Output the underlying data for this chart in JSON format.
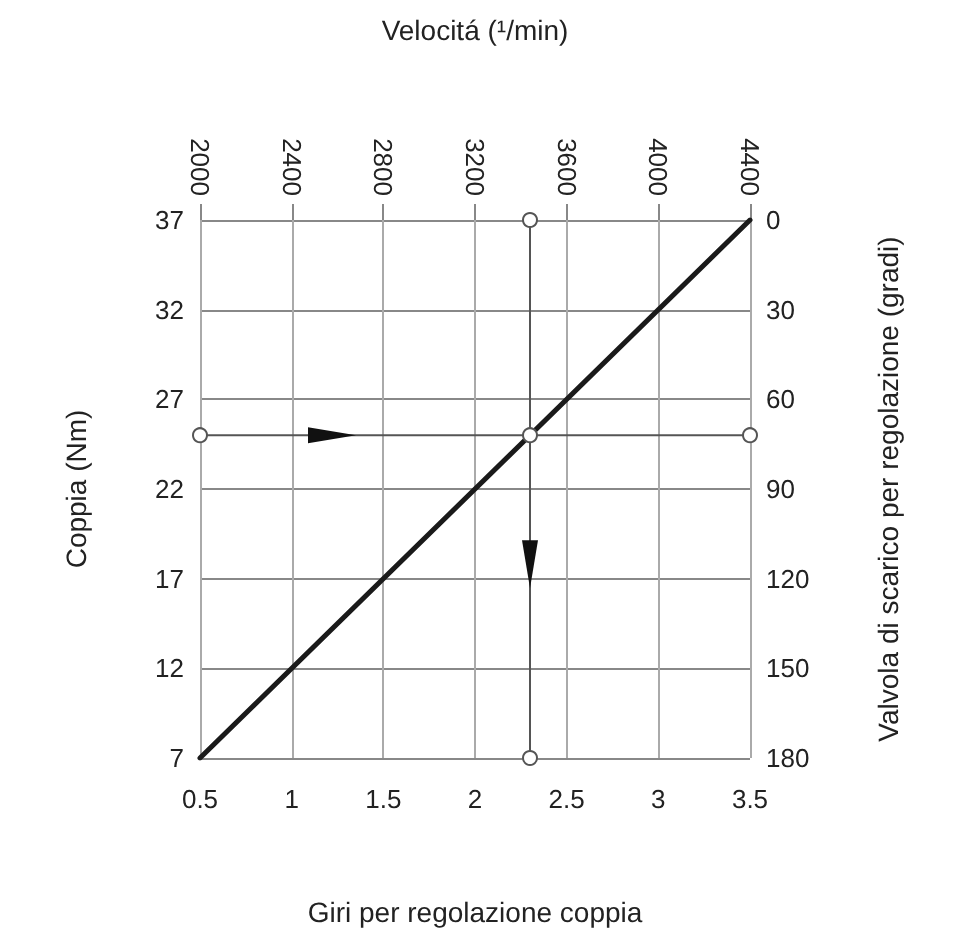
{
  "chart_data": {
    "type": "line",
    "xlabel": "Giri per regolazione coppia",
    "x2label": "Velocitá (¹/min)",
    "ylabel": "Coppia (Nm)",
    "y2label": "Valvola di scarico per regolazione (gradi)",
    "xlim": [
      0.5,
      3.5
    ],
    "xticks": [
      0.5,
      1,
      1.5,
      2,
      2.5,
      3,
      3.5
    ],
    "x2lim": [
      2000,
      4400
    ],
    "x2ticks": [
      2000,
      2400,
      2800,
      3200,
      3600,
      4000,
      4400
    ],
    "ylim": [
      7,
      37
    ],
    "yticks": [
      7,
      12,
      17,
      22,
      27,
      32,
      37
    ],
    "y2lim": [
      180,
      0
    ],
    "y2ticks": [
      0,
      30,
      60,
      90,
      120,
      150,
      180
    ],
    "grid": true,
    "line_style": "solid",
    "series": [
      {
        "color": "#1a1a1a",
        "x": [
          0.5,
          3.5
        ],
        "values": [
          7,
          37
        ],
        "marker": "none"
      },
      {
        "color": "#555555",
        "x": [
          0.5,
          2.3,
          3.5
        ],
        "values": [
          25,
          25,
          25
        ],
        "marker": "circle"
      },
      {
        "color": "#555555",
        "x": [
          2.3,
          2.3
        ],
        "values": [
          37,
          7
        ],
        "marker": "circle"
      }
    ]
  }
}
